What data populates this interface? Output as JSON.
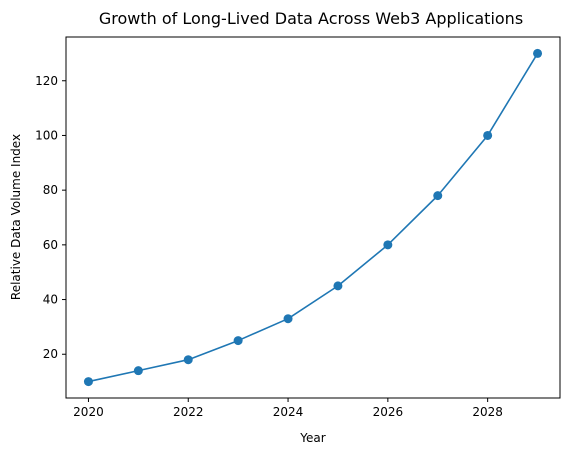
{
  "chart_data": {
    "type": "line",
    "title": "Growth of Long-Lived Data Across Web3 Applications",
    "xlabel": "Year",
    "ylabel": "Relative Data Volume Index",
    "x": [
      2020,
      2021,
      2022,
      2023,
      2024,
      2025,
      2026,
      2027,
      2028,
      2029
    ],
    "series": [
      {
        "values": [
          10,
          14,
          18,
          25,
          33,
          45,
          60,
          78,
          100,
          130
        ],
        "color": "#1f77b4",
        "marker": "circle"
      }
    ],
    "xlim": [
      2019.55,
      2029.45
    ],
    "ylim": [
      4,
      136
    ],
    "xticks": [
      2020,
      2022,
      2024,
      2026,
      2028
    ],
    "yticks": [
      20,
      40,
      60,
      80,
      100,
      120
    ],
    "grid": false,
    "legend": "none"
  }
}
